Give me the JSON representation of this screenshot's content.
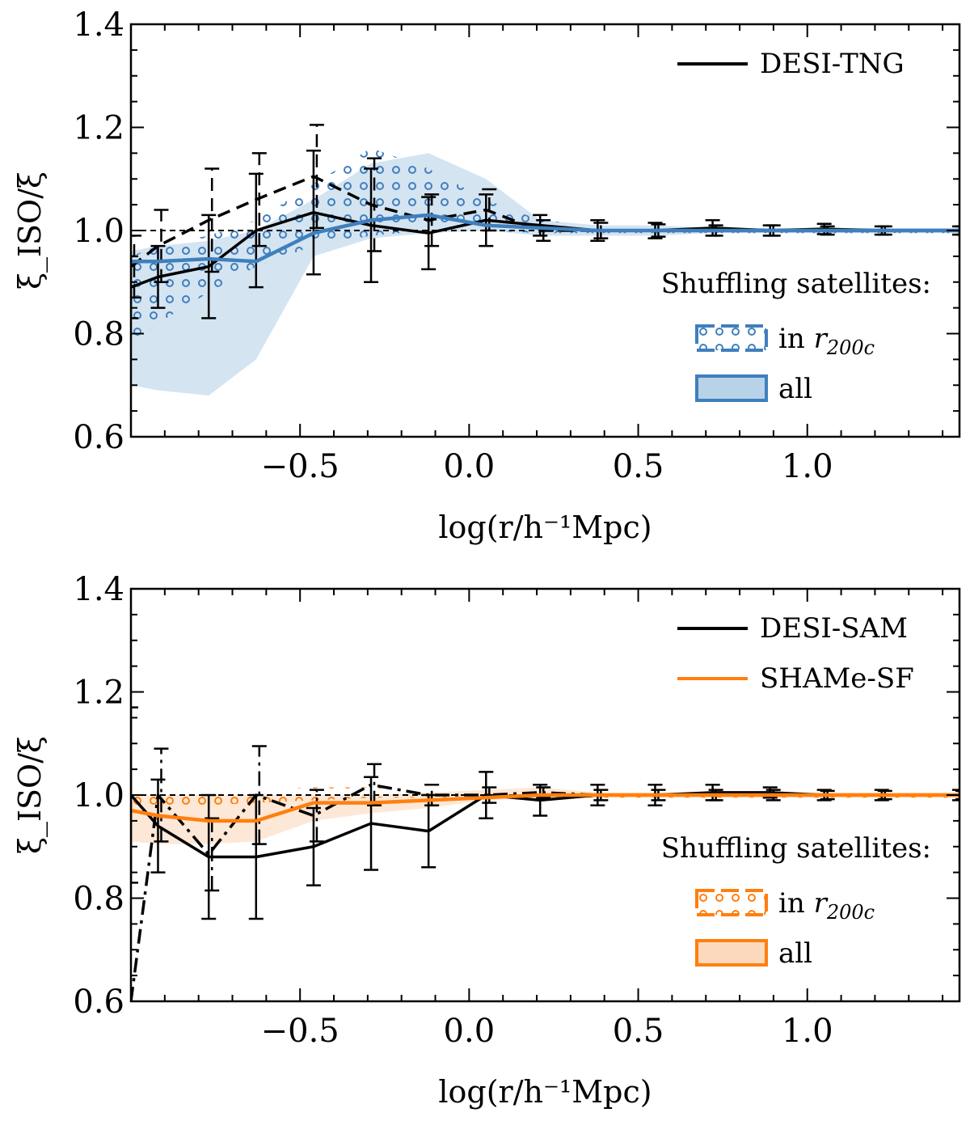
{
  "colors": {
    "blue": "#3f7fbd",
    "blue_fill": "#b8d2e8",
    "orange": "#ff7f0e",
    "orange_fill": "#fcd9bd",
    "black": "#000000"
  },
  "chart_data": [
    {
      "type": "line",
      "panel": "top",
      "xlabel": "log(r/h⁻¹Mpc)",
      "ylabel": "ξ_ISO/ξ",
      "xlim": [
        -1.0,
        1.45
      ],
      "ylim": [
        0.6,
        1.4
      ],
      "xticks": [
        -0.5,
        0.0,
        0.5,
        1.0
      ],
      "xtick_labels": [
        "−0.5",
        "0.0",
        "0.5",
        "1.0"
      ],
      "yticks": [
        0.6,
        0.8,
        1.0,
        1.2,
        1.4
      ],
      "ytick_labels": [
        "0.6",
        "0.8",
        "1.0",
        "1.2",
        "1.4"
      ],
      "reference_line": 1.0,
      "legend_top": [
        {
          "label": "DESI-TNG",
          "color": "#000000"
        }
      ],
      "shuffle_title": "Shuffling satellites:",
      "shuffle_entries": [
        {
          "prefix": "in ",
          "r": "r",
          "sub": "200c"
        },
        {
          "prefix": "all",
          "r": "",
          "sub": ""
        }
      ],
      "x": [
        -1.0,
        -0.92,
        -0.77,
        -0.63,
        -0.46,
        -0.29,
        -0.12,
        0.05,
        0.21,
        0.38,
        0.55,
        0.72,
        0.89,
        1.05,
        1.22,
        1.45
      ],
      "series": [
        {
          "name": "DESI-TNG",
          "style": "solid",
          "color": "#000000",
          "values": [
            0.89,
            0.91,
            0.93,
            1.0,
            1.035,
            1.01,
            0.995,
            1.02,
            1.01,
            1.0,
            1.0,
            1.005,
            1.0,
            1.003,
            1.0,
            1.0
          ],
          "errors": [
            0.06,
            0.06,
            0.1,
            0.11,
            0.12,
            0.11,
            0.07,
            0.05,
            0.02,
            0.02,
            0.015,
            0.015,
            0.01,
            0.01,
            0.008,
            0.008
          ]
        },
        {
          "name": "DESI-TNG shuffled in r200c",
          "style": "dashed",
          "color": "#000000",
          "values": [
            0.93,
            0.97,
            1.02,
            1.06,
            1.105,
            1.05,
            1.02,
            1.04,
            1.0,
            1.0,
            1.0,
            1.0,
            1.0,
            1.0,
            1.0,
            1.0
          ],
          "errors": [
            0.06,
            0.07,
            0.1,
            0.09,
            0.1,
            0.09,
            0.05,
            0.04,
            0.02,
            0.015,
            0.012,
            0.01,
            0.01,
            0.008,
            0.008,
            0.008
          ]
        },
        {
          "name": "shuffled all (mean)",
          "style": "solid",
          "color": "#3f7fbd",
          "values": [
            0.94,
            0.94,
            0.945,
            0.94,
            0.995,
            1.02,
            1.03,
            1.01,
            1.005,
            1.0,
            1.0,
            1.0,
            1.0,
            1.0,
            1.0,
            1.0
          ]
        }
      ],
      "bands": [
        {
          "name": "all",
          "color": "#3f7fbd",
          "lower": [
            0.7,
            0.69,
            0.68,
            0.75,
            0.95,
            0.985,
            0.995,
            1.0,
            0.99,
            0.99,
            0.99,
            0.995,
            0.995,
            0.995,
            0.995,
            0.995
          ],
          "upper": [
            0.96,
            0.97,
            0.98,
            1.0,
            1.06,
            1.13,
            1.15,
            1.1,
            1.02,
            1.01,
            1.01,
            1.005,
            1.005,
            1.005,
            1.005,
            1.005
          ]
        },
        {
          "name": "in r200c",
          "color": "#3f7fbd",
          "lower": [
            0.78,
            0.82,
            0.88,
            0.93,
            0.97,
            0.99,
            1.0,
            1.0,
            0.995,
            0.995,
            0.995,
            0.995,
            0.995,
            0.995,
            0.995,
            0.995
          ],
          "upper": [
            0.95,
            0.97,
            0.99,
            1.02,
            1.09,
            1.16,
            1.12,
            1.06,
            1.02,
            1.01,
            1.01,
            1.005,
            1.005,
            1.005,
            1.005,
            1.005
          ]
        }
      ]
    },
    {
      "type": "line",
      "panel": "bottom",
      "xlabel": "log(r/h⁻¹Mpc)",
      "ylabel": "ξ_ISO/ξ",
      "xlim": [
        -1.0,
        1.45
      ],
      "ylim": [
        0.6,
        1.4
      ],
      "xticks": [
        -0.5,
        0.0,
        0.5,
        1.0
      ],
      "xtick_labels": [
        "−0.5",
        "0.0",
        "0.5",
        "1.0"
      ],
      "yticks": [
        0.6,
        0.8,
        1.0,
        1.2,
        1.4
      ],
      "ytick_labels": [
        "0.6",
        "0.8",
        "1.0",
        "1.2",
        "1.4"
      ],
      "reference_line": 1.0,
      "legend_top": [
        {
          "label": "DESI-SAM",
          "color": "#000000"
        },
        {
          "label": "SHAMe-SF",
          "color": "#ff7f0e"
        }
      ],
      "shuffle_title": "Shuffling satellites:",
      "shuffle_entries": [
        {
          "prefix": "in ",
          "r": "r",
          "sub": "200c"
        },
        {
          "prefix": "all",
          "r": "",
          "sub": ""
        }
      ],
      "x": [
        -1.0,
        -0.92,
        -0.77,
        -0.63,
        -0.46,
        -0.29,
        -0.12,
        0.05,
        0.21,
        0.38,
        0.55,
        0.72,
        0.89,
        1.05,
        1.22,
        1.45
      ],
      "series": [
        {
          "name": "DESI-SAM",
          "style": "solid",
          "color": "#000000",
          "values": [
            1.0,
            0.94,
            0.88,
            0.88,
            0.9,
            0.945,
            0.93,
            1.0,
            0.99,
            1.0,
            1.0,
            1.005,
            1.005,
            1.0,
            1.0,
            1.0
          ],
          "errors": [
            0.17,
            0.09,
            0.12,
            0.12,
            0.075,
            0.09,
            0.07,
            0.045,
            0.03,
            0.02,
            0.02,
            0.015,
            0.01,
            0.01,
            0.01,
            0.01
          ]
        },
        {
          "name": "DESI-SAM shuffled in r200c",
          "style": "dashdot",
          "color": "#000000",
          "values": [
            0.6,
            1.0,
            0.885,
            1.0,
            0.96,
            1.02,
            1.0,
            1.0,
            1.005,
            1.0,
            1.0,
            1.0,
            1.0,
            1.0,
            1.0,
            1.0
          ],
          "errors": [
            0.0,
            0.09,
            0.07,
            0.095,
            0.05,
            0.04,
            0.02,
            0.015,
            0.01,
            0.01,
            0.01,
            0.01,
            0.01,
            0.008,
            0.008,
            0.008
          ]
        },
        {
          "name": "SHAMe-SF shuffled all (mean)",
          "style": "solid",
          "color": "#ff7f0e",
          "values": [
            0.97,
            0.96,
            0.95,
            0.95,
            0.985,
            0.985,
            0.99,
            0.995,
            1.0,
            1.0,
            1.0,
            1.0,
            1.0,
            1.0,
            1.0,
            1.0
          ]
        }
      ],
      "bands": [
        {
          "name": "all",
          "color": "#ff7f0e",
          "lower": [
            0.91,
            0.905,
            0.905,
            0.91,
            0.95,
            0.965,
            0.975,
            0.99,
            0.995,
            0.995,
            0.995,
            0.995,
            0.995,
            0.995,
            0.995,
            0.995
          ],
          "upper": [
            1.0,
            1.0,
            1.0,
            1.0,
            1.0,
            1.0,
            1.005,
            1.01,
            1.015,
            1.005,
            1.005,
            1.005,
            1.005,
            1.005,
            1.005,
            1.005
          ]
        },
        {
          "name": "in r200c",
          "color": "#ff7f0e",
          "lower": [
            0.97,
            0.975,
            0.98,
            0.985,
            0.99,
            0.995,
            0.995,
            0.995,
            0.995,
            0.995,
            0.995,
            0.995,
            0.995,
            0.995,
            0.995,
            0.995
          ],
          "upper": [
            1.01,
            1.01,
            1.01,
            1.01,
            1.015,
            1.015,
            1.01,
            1.01,
            1.005,
            1.005,
            1.005,
            1.005,
            1.005,
            1.005,
            1.005,
            1.005
          ]
        }
      ]
    }
  ]
}
